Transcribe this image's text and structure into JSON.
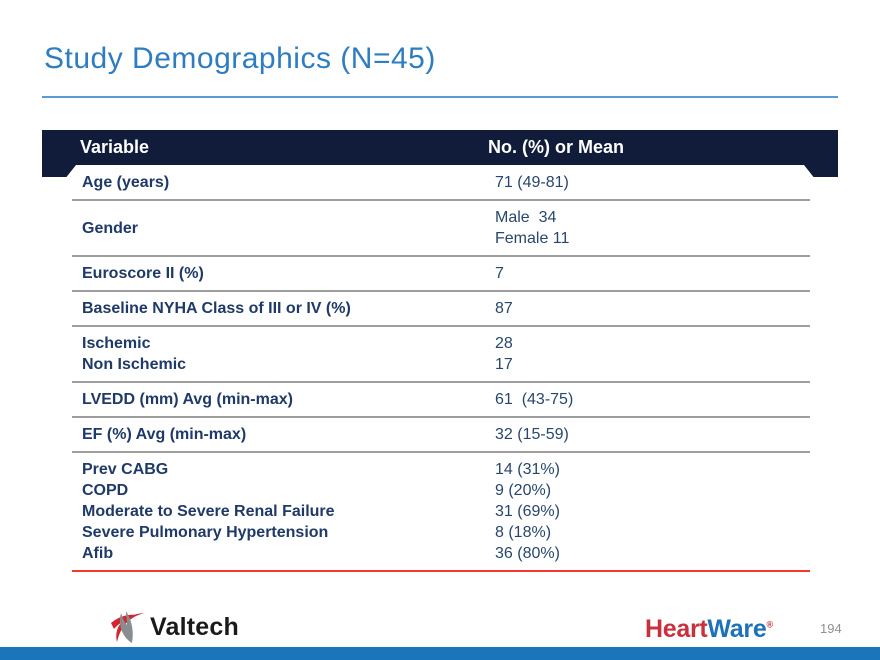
{
  "slide": {
    "title": "Study Demographics (N=45)",
    "page_number": "194"
  },
  "table": {
    "headers": [
      "Variable",
      "No. (%) or Mean"
    ],
    "rows": [
      {
        "label": [
          "Age (years)"
        ],
        "value": [
          "71 (49-81)"
        ]
      },
      {
        "label": [
          "Gender"
        ],
        "value": [
          "Male  34",
          "Female 11"
        ]
      },
      {
        "label": [
          "Euroscore II (%)"
        ],
        "value": [
          "7"
        ]
      },
      {
        "label": [
          "Baseline NYHA Class of III or IV (%)"
        ],
        "value": [
          "87"
        ]
      },
      {
        "label": [
          "Ischemic",
          "Non Ischemic"
        ],
        "value": [
          "28",
          "17"
        ]
      },
      {
        "label": [
          "LVEDD (mm) Avg (min-max)"
        ],
        "value": [
          "61  (43-75)"
        ]
      },
      {
        "label": [
          "EF (%) Avg (min-max)"
        ],
        "value": [
          "32 (15-59)"
        ]
      },
      {
        "label": [
          "Prev CABG",
          "COPD",
          "Moderate to Severe Renal Failure",
          "Severe Pulmonary Hypertension",
          "Afib"
        ],
        "value": [
          "14 (31%)",
          "9 (20%)",
          "31 (69%)",
          "8 (18%)",
          "36 (80%)"
        ]
      }
    ]
  },
  "footer": {
    "valtech_label": "Valtech",
    "heartware_part1": "Heart",
    "heartware_part2": "Ware",
    "heartware_reg": "®"
  },
  "colors": {
    "title_blue": "#2E7CC1",
    "rule_blue": "#5B9BD5",
    "header_navy": "#101C3A",
    "body_navy": "#1F3A68",
    "separator_gray": "#9E9E9E",
    "accent_red": "#F8372D",
    "bottom_bar_blue": "#1B75BB",
    "valtech_red": "#D22730",
    "valtech_gray": "#8A8D8F",
    "heartware_red": "#C8303E",
    "heartware_blue": "#1D71B8"
  }
}
